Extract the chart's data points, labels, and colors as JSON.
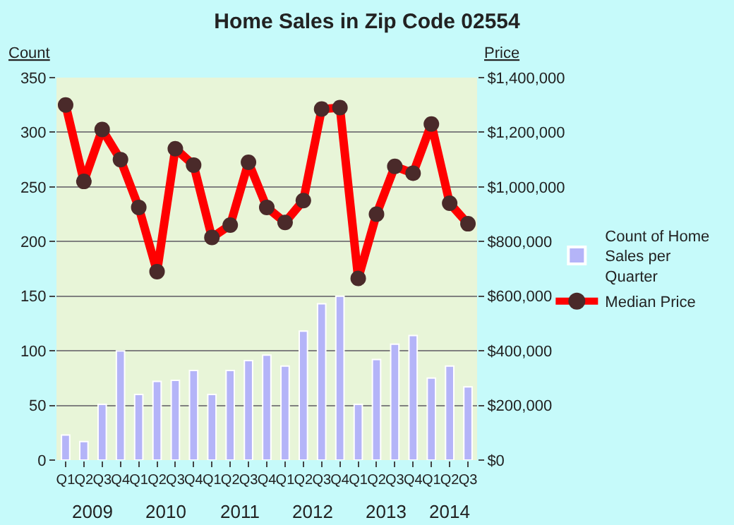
{
  "chart_data": {
    "type": "bar",
    "title": "Home Sales in Zip Code 02554",
    "ylabel": "Count",
    "y2label": "Price",
    "categories": [
      "Q1",
      "Q2",
      "Q3",
      "Q4",
      "Q1",
      "Q2",
      "Q3",
      "Q4",
      "Q1",
      "Q2",
      "Q3",
      "Q4",
      "Q1",
      "Q2",
      "Q3",
      "Q4",
      "Q1",
      "Q2",
      "Q3",
      "Q4",
      "Q1",
      "Q2",
      "Q3"
    ],
    "annotations": [
      "2009",
      "2010",
      "2011",
      "2012",
      "2013",
      "2014"
    ],
    "series": [
      {
        "name": "Count of Home Sales per Quarter",
        "color": "#b4b4f8",
        "values": [
          23,
          17,
          51,
          100,
          60,
          72,
          73,
          82,
          60,
          82,
          91,
          96,
          86,
          118,
          143,
          150,
          51,
          92,
          106,
          114,
          75,
          86,
          67
        ]
      },
      {
        "name": "Median Price",
        "type": "line",
        "axis": "y2",
        "color": "#ff0000",
        "marker": "circle",
        "line_style": "solid",
        "values": [
          1300000,
          1020000,
          1210000,
          1100000,
          925000,
          690000,
          1140000,
          1080000,
          815000,
          860000,
          1090000,
          925000,
          870000,
          950000,
          1285000,
          1290000,
          665000,
          900000,
          1075000,
          1050000,
          1230000,
          940000,
          865000
        ]
      }
    ],
    "ylim": [
      0,
      350
    ],
    "yticks": [
      0,
      50,
      100,
      150,
      200,
      250,
      300,
      350
    ],
    "y2lim": [
      0,
      1400000
    ],
    "y2ticks": [
      {
        "value": 0,
        "label": "$0"
      },
      {
        "value": 200000,
        "label": "$200,000"
      },
      {
        "value": 400000,
        "label": "$400,000"
      },
      {
        "value": 600000,
        "label": "$600,000"
      },
      {
        "value": 800000,
        "label": "$800,000"
      },
      {
        "value": 1000000,
        "label": "$1,000,000"
      },
      {
        "value": 1200000,
        "label": "$1,200,000"
      },
      {
        "value": 1400000,
        "label": "$1,400,000"
      }
    ],
    "grid": "y",
    "legend": "right"
  }
}
